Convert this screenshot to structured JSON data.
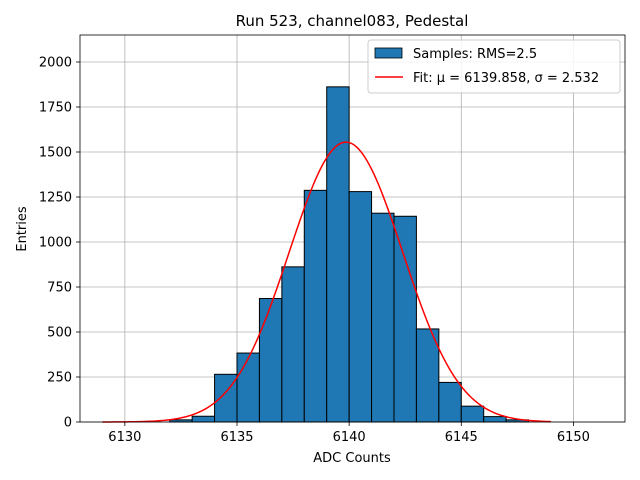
{
  "chart_data": {
    "type": "bar",
    "title": "Run 523, channel083, Pedestal",
    "xlabel": "ADC Counts",
    "ylabel": "Entries",
    "xlim": [
      6128,
      6152.3
    ],
    "ylim": [
      0,
      2150
    ],
    "xticks": [
      6130,
      6135,
      6140,
      6145,
      6150
    ],
    "yticks": [
      0,
      250,
      500,
      750,
      1000,
      1250,
      1500,
      1750,
      2000
    ],
    "grid": true,
    "legend_position": "top-right",
    "colors": {
      "bars": "#1f77b4",
      "bar_edge": "#000000",
      "fit": "#ff0000",
      "grid": "#b0b0b0"
    },
    "histogram": {
      "name": "Samples: RMS=2.5",
      "bin_edges": [
        6129,
        6130,
        6131,
        6132,
        6133,
        6134,
        6135,
        6136,
        6137,
        6138,
        6139,
        6140,
        6141,
        6142,
        6143,
        6144,
        6145,
        6146,
        6147,
        6148,
        6149,
        6150,
        6151
      ],
      "counts": [
        0,
        0,
        0,
        12,
        32,
        265,
        383,
        686,
        862,
        1287,
        1862,
        1280,
        1160,
        1143,
        517,
        220,
        88,
        30,
        12,
        0,
        0,
        0
      ]
    },
    "fit": {
      "name": "Fit: μ = 6139.858, σ = 2.532",
      "mu": 6139.858,
      "sigma": 2.532,
      "amplitude": 1555,
      "x_range": [
        6129,
        6149
      ]
    }
  }
}
